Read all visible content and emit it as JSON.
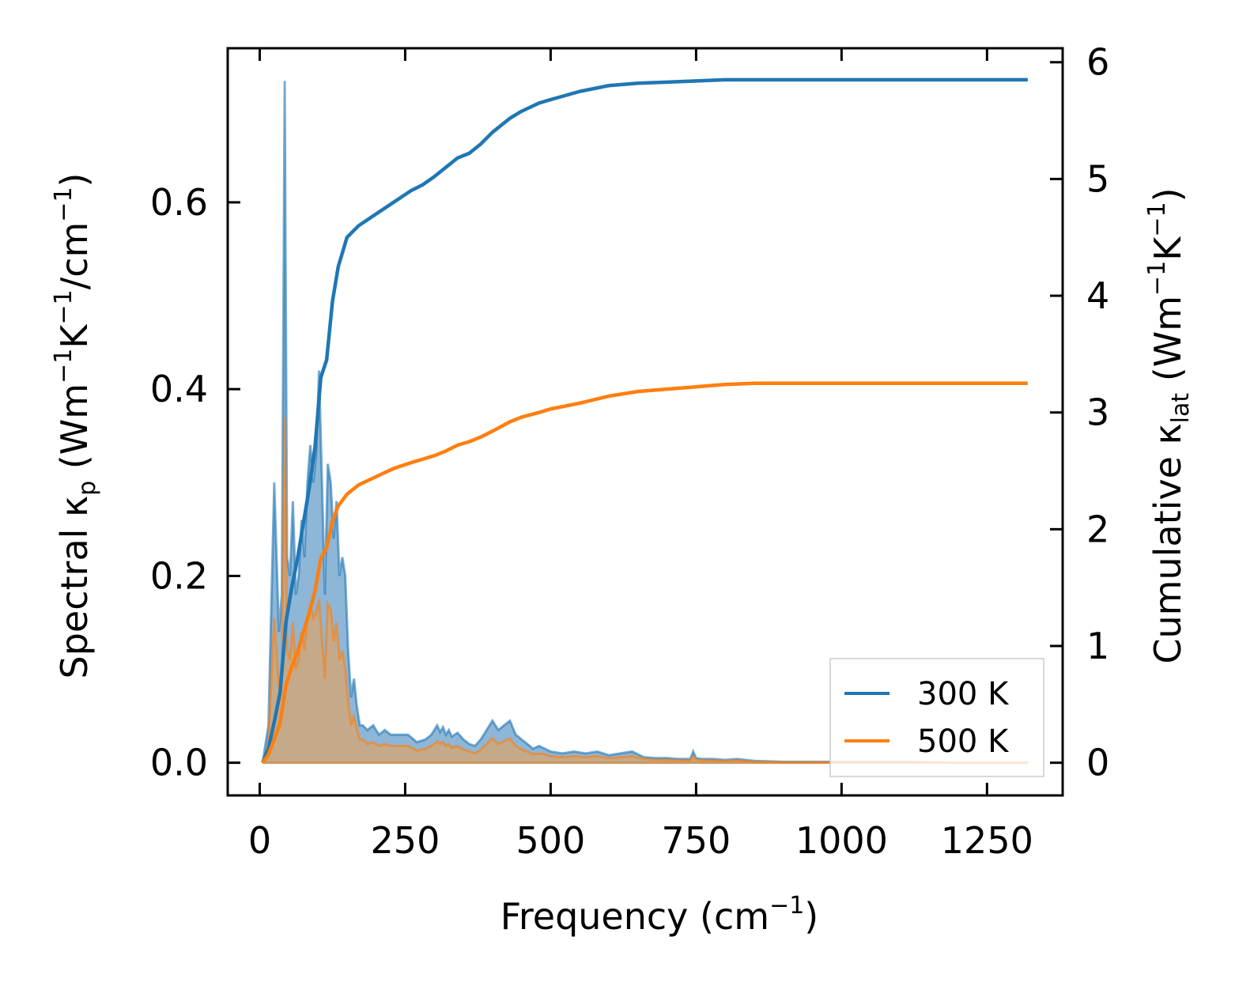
{
  "chart_data": {
    "type": "line",
    "xlabel": "Frequency (cm",
    "xlabel_sup": "−1",
    "xlabel_end": ")",
    "ylabel_left_parts": [
      "Spectral κ",
      "p",
      " (Wm",
      "−1",
      "K",
      "−1",
      "/cm",
      "−1",
      ")"
    ],
    "ylabel_right_parts": [
      "Cumulative κ",
      "lat",
      " (Wm",
      "−1",
      "K",
      "−1",
      ")"
    ],
    "xlim": [
      -55,
      1380
    ],
    "ylim_left": [
      -0.035,
      0.765
    ],
    "ylim_right": [
      -0.28,
      6.12
    ],
    "x_ticks": [
      0,
      250,
      500,
      750,
      1000,
      1250
    ],
    "x_tick_labels": [
      "0",
      "250",
      "500",
      "750",
      "1000",
      "1250"
    ],
    "y_left_ticks": [
      0.0,
      0.2,
      0.4,
      0.6
    ],
    "y_left_tick_labels": [
      "0.0",
      "0.2",
      "0.4",
      "0.6"
    ],
    "y_right_ticks": [
      0,
      1,
      2,
      3,
      4,
      5,
      6
    ],
    "y_right_tick_labels": [
      "0",
      "1",
      "2",
      "3",
      "4",
      "5",
      "6"
    ],
    "legend": {
      "location": "lower-right",
      "entries": [
        "300 K",
        "500 K"
      ]
    },
    "colors": {
      "300K": "#1f77b4",
      "500K": "#ff7f0e",
      "300K_fill": "#7aa9d0",
      "500K_fill": "#d6a670"
    },
    "series": [
      {
        "name": "300 K",
        "axis": "left",
        "kind": "spectral",
        "x": [
          5,
          15,
          25,
          33,
          38,
          43,
          47,
          52,
          57,
          62,
          67,
          72,
          77,
          82,
          87,
          92,
          97,
          102,
          107,
          112,
          117,
          122,
          127,
          132,
          137,
          142,
          147,
          152,
          157,
          162,
          167,
          172,
          177,
          185,
          195,
          205,
          215,
          225,
          240,
          255,
          270,
          285,
          295,
          300,
          305,
          310,
          315,
          320,
          325,
          330,
          340,
          350,
          360,
          370,
          380,
          390,
          395,
          400,
          410,
          420,
          430,
          440,
          450,
          460,
          470,
          480,
          490,
          500,
          520,
          540,
          560,
          580,
          600,
          620,
          640,
          660,
          680,
          700,
          720,
          740,
          745,
          750,
          760,
          780,
          800,
          820,
          850,
          900,
          950,
          1000,
          1100,
          1200,
          1320
        ],
        "y": [
          0.0,
          0.04,
          0.3,
          0.14,
          0.18,
          0.73,
          0.22,
          0.2,
          0.28,
          0.18,
          0.2,
          0.26,
          0.22,
          0.3,
          0.34,
          0.3,
          0.33,
          0.42,
          0.3,
          0.18,
          0.32,
          0.3,
          0.24,
          0.28,
          0.2,
          0.22,
          0.2,
          0.12,
          0.07,
          0.09,
          0.06,
          0.04,
          0.04,
          0.035,
          0.04,
          0.03,
          0.035,
          0.03,
          0.03,
          0.03,
          0.022,
          0.025,
          0.03,
          0.035,
          0.04,
          0.033,
          0.038,
          0.03,
          0.035,
          0.028,
          0.032,
          0.025,
          0.02,
          0.018,
          0.025,
          0.035,
          0.04,
          0.045,
          0.035,
          0.04,
          0.045,
          0.03,
          0.025,
          0.02,
          0.015,
          0.018,
          0.015,
          0.012,
          0.01,
          0.012,
          0.01,
          0.012,
          0.008,
          0.01,
          0.012,
          0.006,
          0.005,
          0.005,
          0.004,
          0.004,
          0.012,
          0.005,
          0.004,
          0.004,
          0.003,
          0.004,
          0.002,
          0.001,
          0.001,
          0.001,
          0.001,
          0.0,
          0.0
        ]
      },
      {
        "name": "500 K",
        "axis": "left",
        "kind": "spectral",
        "x": [
          5,
          15,
          25,
          33,
          38,
          43,
          47,
          52,
          57,
          62,
          67,
          72,
          77,
          82,
          87,
          92,
          97,
          102,
          107,
          112,
          117,
          122,
          127,
          132,
          137,
          142,
          147,
          152,
          157,
          162,
          167,
          172,
          177,
          185,
          195,
          205,
          215,
          225,
          240,
          255,
          270,
          285,
          295,
          300,
          305,
          310,
          315,
          320,
          325,
          330,
          340,
          350,
          360,
          370,
          380,
          390,
          395,
          400,
          410,
          420,
          430,
          440,
          450,
          460,
          470,
          480,
          490,
          500,
          520,
          540,
          560,
          580,
          600,
          620,
          640,
          660,
          680,
          700,
          720,
          740,
          745,
          750,
          760,
          780,
          800,
          820,
          850,
          900,
          950,
          1000,
          1100,
          1200,
          1320
        ],
        "y": [
          0.0,
          0.02,
          0.155,
          0.08,
          0.1,
          0.37,
          0.12,
          0.11,
          0.15,
          0.1,
          0.11,
          0.14,
          0.12,
          0.155,
          0.17,
          0.155,
          0.16,
          0.175,
          0.13,
          0.09,
          0.17,
          0.165,
          0.13,
          0.15,
          0.11,
          0.12,
          0.1,
          0.065,
          0.04,
          0.05,
          0.035,
          0.025,
          0.025,
          0.02,
          0.022,
          0.018,
          0.02,
          0.018,
          0.018,
          0.018,
          0.013,
          0.015,
          0.018,
          0.02,
          0.023,
          0.02,
          0.022,
          0.018,
          0.02,
          0.016,
          0.018,
          0.014,
          0.012,
          0.01,
          0.014,
          0.02,
          0.023,
          0.026,
          0.02,
          0.023,
          0.026,
          0.018,
          0.014,
          0.012,
          0.009,
          0.01,
          0.009,
          0.007,
          0.006,
          0.007,
          0.006,
          0.007,
          0.005,
          0.006,
          0.007,
          0.004,
          0.003,
          0.003,
          0.0025,
          0.0025,
          0.007,
          0.003,
          0.0025,
          0.0025,
          0.002,
          0.0025,
          0.001,
          0.0005,
          0.0005,
          0.0005,
          0.0005,
          0.0,
          0.0
        ]
      },
      {
        "name": "300 K",
        "axis": "right",
        "kind": "cumulative",
        "x": [
          5,
          15,
          25,
          35,
          45,
          55,
          65,
          75,
          85,
          95,
          105,
          115,
          125,
          135,
          150,
          170,
          200,
          230,
          260,
          280,
          300,
          320,
          340,
          360,
          380,
          400,
          430,
          450,
          480,
          500,
          550,
          600,
          650,
          700,
          750,
          800,
          850,
          900,
          1000,
          1100,
          1200,
          1320
        ],
        "y": [
          0.0,
          0.12,
          0.35,
          0.6,
          1.2,
          1.5,
          1.75,
          2.05,
          2.35,
          2.7,
          3.3,
          3.45,
          3.95,
          4.25,
          4.5,
          4.6,
          4.7,
          4.8,
          4.9,
          4.95,
          5.02,
          5.1,
          5.18,
          5.22,
          5.3,
          5.4,
          5.52,
          5.58,
          5.65,
          5.68,
          5.75,
          5.8,
          5.82,
          5.83,
          5.84,
          5.85,
          5.85,
          5.85,
          5.85,
          5.85,
          5.85,
          5.85
        ]
      },
      {
        "name": "500 K",
        "axis": "right",
        "kind": "cumulative",
        "x": [
          5,
          15,
          25,
          35,
          45,
          55,
          65,
          75,
          85,
          95,
          105,
          115,
          125,
          135,
          150,
          170,
          200,
          230,
          260,
          280,
          300,
          320,
          340,
          360,
          380,
          400,
          430,
          450,
          480,
          500,
          550,
          600,
          650,
          700,
          750,
          800,
          850,
          900,
          1000,
          1100,
          1200,
          1320
        ],
        "y": [
          0.0,
          0.07,
          0.2,
          0.34,
          0.66,
          0.82,
          0.95,
          1.12,
          1.28,
          1.47,
          1.75,
          1.84,
          2.07,
          2.2,
          2.3,
          2.38,
          2.45,
          2.52,
          2.57,
          2.6,
          2.63,
          2.67,
          2.72,
          2.75,
          2.79,
          2.84,
          2.92,
          2.96,
          3.0,
          3.03,
          3.08,
          3.14,
          3.18,
          3.2,
          3.22,
          3.24,
          3.25,
          3.25,
          3.25,
          3.25,
          3.25,
          3.25
        ]
      }
    ]
  }
}
